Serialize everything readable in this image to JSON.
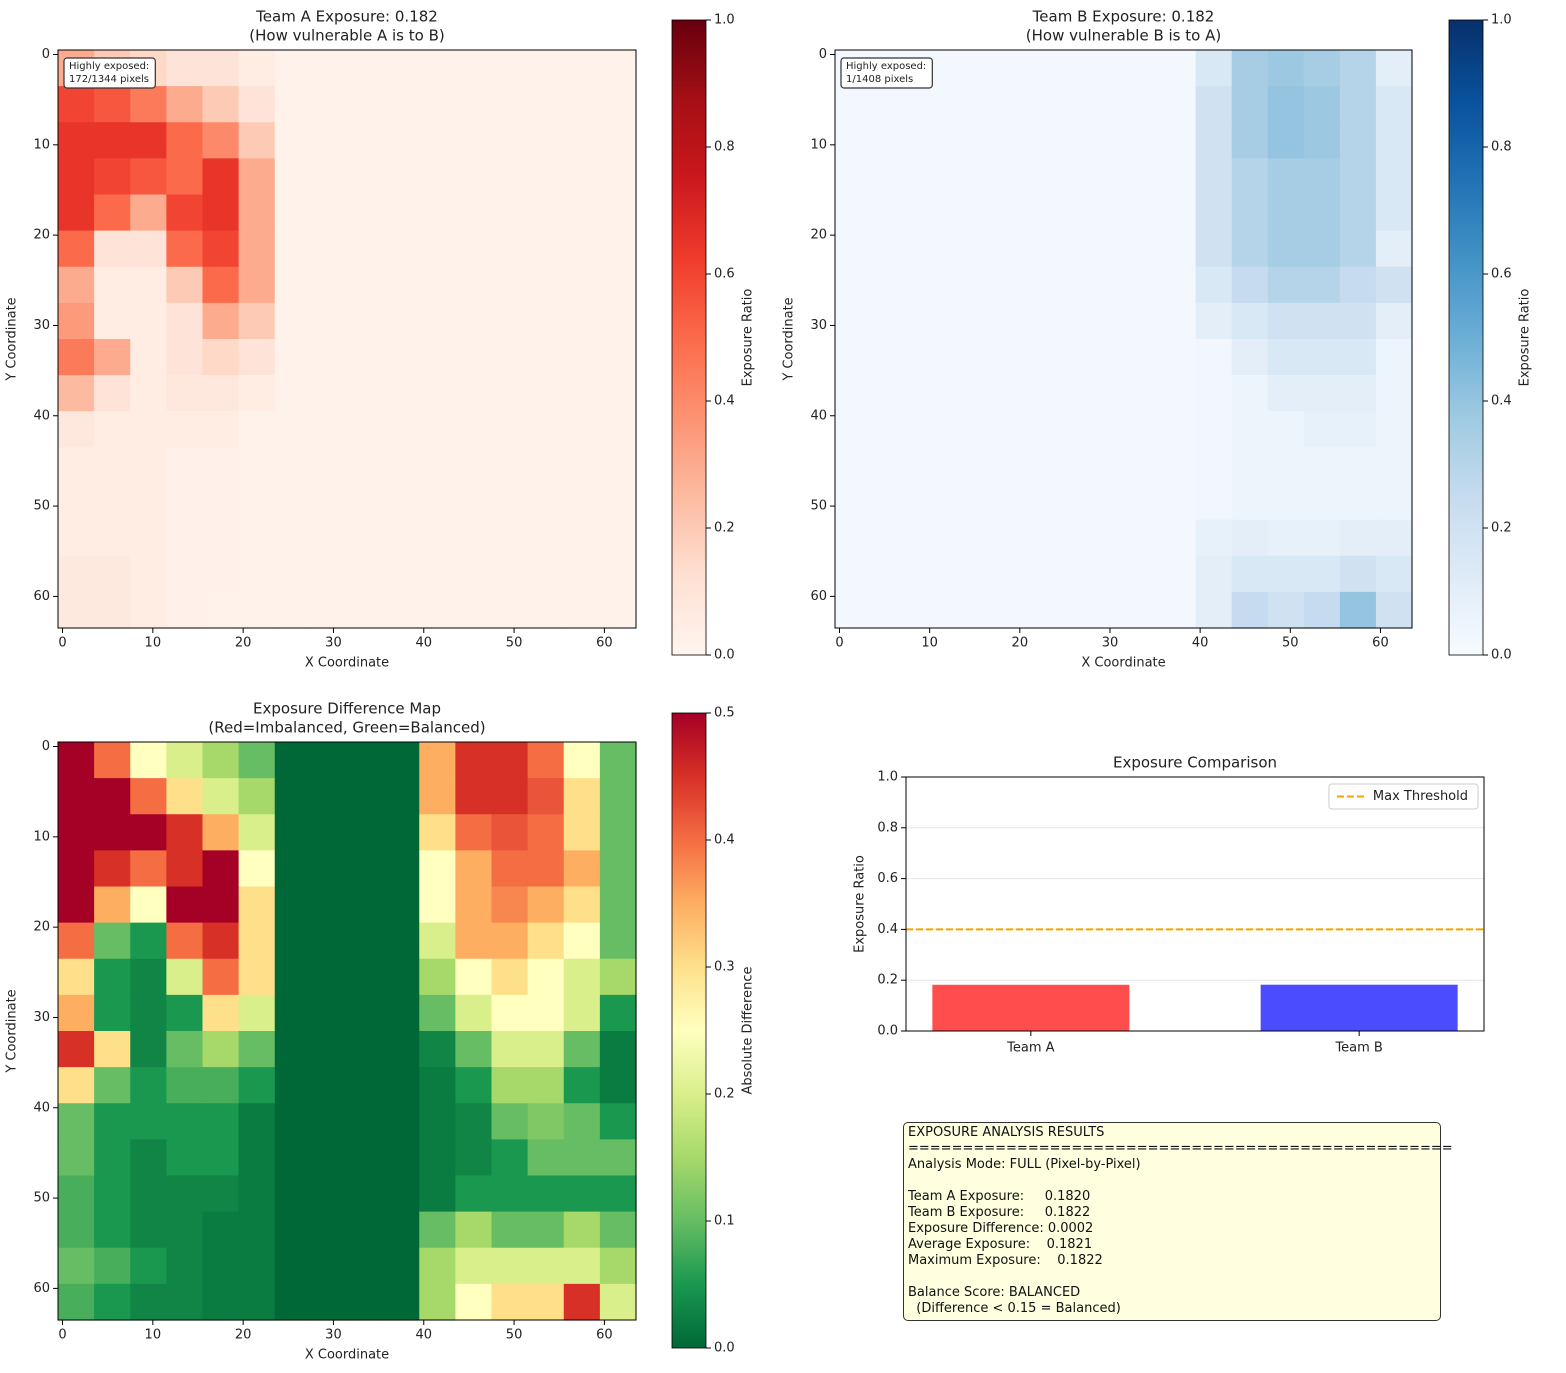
{
  "chart_data": [
    {
      "type": "heatmap",
      "title": "Team A Exposure: 0.182",
      "subtitle": "(How vulnerable A is to B)",
      "xlabel": "X Coordinate",
      "ylabel": "Y Coordinate",
      "xlim": [
        -0.5,
        63.5
      ],
      "ylim": [
        63.5,
        -0.5
      ],
      "xticks": [
        0,
        10,
        20,
        30,
        40,
        50,
        60
      ],
      "yticks": [
        0,
        10,
        20,
        30,
        40,
        50,
        60
      ],
      "annotation": [
        "Highly exposed:",
        "172/1344 pixels"
      ],
      "colormap": [
        "#fff5f0",
        "#fee0d2",
        "#fcbba1",
        "#fc9272",
        "#fb6a4a",
        "#ef3b2c",
        "#cb181d",
        "#a50f15",
        "#67000d"
      ],
      "colorbar": {
        "label": "Exposure Ratio",
        "lim": [
          0,
          1
        ],
        "ticks": [
          {
            "value": 0,
            "label": "0.0"
          },
          {
            "value": 0.2,
            "label": "0.2"
          },
          {
            "value": 0.4,
            "label": "0.4"
          },
          {
            "value": 0.6,
            "label": "0.6"
          },
          {
            "value": 0.8,
            "label": "0.8"
          },
          {
            "value": 1,
            "label": "1.0"
          }
        ]
      },
      "values": [
        [
          0.3,
          0.2,
          0.15,
          0.1,
          0.1,
          0.05,
          0.02,
          0.02,
          0.02,
          0.02,
          0.02,
          0.02,
          0.02,
          0.02,
          0.02,
          0.02
        ],
        [
          0.6,
          0.55,
          0.45,
          0.3,
          0.2,
          0.1,
          0.02,
          0.02,
          0.02,
          0.02,
          0.02,
          0.02,
          0.02,
          0.02,
          0.02,
          0.02
        ],
        [
          0.65,
          0.65,
          0.65,
          0.5,
          0.4,
          0.2,
          0.02,
          0.02,
          0.02,
          0.02,
          0.02,
          0.02,
          0.02,
          0.02,
          0.02,
          0.02
        ],
        [
          0.65,
          0.6,
          0.55,
          0.5,
          0.65,
          0.3,
          0.02,
          0.02,
          0.02,
          0.02,
          0.02,
          0.02,
          0.02,
          0.02,
          0.02,
          0.02
        ],
        [
          0.65,
          0.5,
          0.3,
          0.6,
          0.65,
          0.3,
          0.02,
          0.02,
          0.02,
          0.02,
          0.02,
          0.02,
          0.02,
          0.02,
          0.02,
          0.02
        ],
        [
          0.5,
          0.1,
          0.1,
          0.5,
          0.6,
          0.3,
          0.02,
          0.02,
          0.02,
          0.02,
          0.02,
          0.02,
          0.02,
          0.02,
          0.02,
          0.02
        ],
        [
          0.3,
          0.05,
          0.05,
          0.2,
          0.5,
          0.3,
          0.02,
          0.02,
          0.02,
          0.02,
          0.02,
          0.02,
          0.02,
          0.02,
          0.02,
          0.02
        ],
        [
          0.35,
          0.05,
          0.05,
          0.1,
          0.3,
          0.2,
          0.02,
          0.02,
          0.02,
          0.02,
          0.02,
          0.02,
          0.02,
          0.02,
          0.02,
          0.02
        ],
        [
          0.45,
          0.3,
          0.05,
          0.1,
          0.15,
          0.1,
          0.02,
          0.02,
          0.02,
          0.02,
          0.02,
          0.02,
          0.02,
          0.02,
          0.02,
          0.02
        ],
        [
          0.25,
          0.1,
          0.05,
          0.08,
          0.08,
          0.05,
          0.02,
          0.02,
          0.02,
          0.02,
          0.02,
          0.02,
          0.02,
          0.02,
          0.02,
          0.02
        ],
        [
          0.08,
          0.05,
          0.05,
          0.05,
          0.05,
          0.02,
          0.02,
          0.02,
          0.02,
          0.02,
          0.02,
          0.02,
          0.02,
          0.02,
          0.02,
          0.02
        ],
        [
          0.05,
          0.05,
          0.05,
          0.03,
          0.03,
          0.02,
          0.02,
          0.02,
          0.02,
          0.02,
          0.02,
          0.02,
          0.02,
          0.02,
          0.02,
          0.02
        ],
        [
          0.05,
          0.05,
          0.05,
          0.03,
          0.03,
          0.02,
          0.02,
          0.02,
          0.02,
          0.02,
          0.02,
          0.02,
          0.02,
          0.02,
          0.02,
          0.02
        ],
        [
          0.05,
          0.05,
          0.05,
          0.03,
          0.03,
          0.02,
          0.02,
          0.02,
          0.02,
          0.02,
          0.02,
          0.02,
          0.02,
          0.02,
          0.02,
          0.02
        ],
        [
          0.07,
          0.07,
          0.05,
          0.03,
          0.03,
          0.02,
          0.02,
          0.02,
          0.02,
          0.02,
          0.02,
          0.02,
          0.02,
          0.02,
          0.02,
          0.02
        ],
        [
          0.07,
          0.07,
          0.05,
          0.03,
          0.02,
          0.02,
          0.02,
          0.02,
          0.02,
          0.02,
          0.02,
          0.02,
          0.02,
          0.02,
          0.02,
          0.02
        ]
      ]
    },
    {
      "type": "heatmap",
      "title": "Team B Exposure: 0.182",
      "subtitle": "(How vulnerable B is to A)",
      "xlabel": "X Coordinate",
      "ylabel": "Y Coordinate",
      "xlim": [
        -0.5,
        63.5
      ],
      "ylim": [
        63.5,
        -0.5
      ],
      "xticks": [
        0,
        10,
        20,
        30,
        40,
        50,
        60
      ],
      "yticks": [
        0,
        10,
        20,
        30,
        40,
        50,
        60
      ],
      "annotation": [
        "Highly exposed:",
        "1/1408 pixels"
      ],
      "colormap": [
        "#f7fbff",
        "#deebf7",
        "#c6dbef",
        "#9ecae1",
        "#6baed6",
        "#4292c6",
        "#2171b5",
        "#08519c",
        "#08306b"
      ],
      "colorbar": {
        "label": "Exposure Ratio",
        "lim": [
          0,
          1
        ],
        "ticks": [
          {
            "value": 0,
            "label": "0.0"
          },
          {
            "value": 0.2,
            "label": "0.2"
          },
          {
            "value": 0.4,
            "label": "0.4"
          },
          {
            "value": 0.6,
            "label": "0.6"
          },
          {
            "value": 0.8,
            "label": "0.8"
          },
          {
            "value": 1,
            "label": "1.0"
          }
        ]
      },
      "values": [
        [
          0.02,
          0.02,
          0.02,
          0.02,
          0.02,
          0.02,
          0.02,
          0.02,
          0.02,
          0.02,
          0.15,
          0.35,
          0.38,
          0.35,
          0.3,
          0.1
        ],
        [
          0.02,
          0.02,
          0.02,
          0.02,
          0.02,
          0.02,
          0.02,
          0.02,
          0.02,
          0.02,
          0.2,
          0.35,
          0.4,
          0.38,
          0.3,
          0.15
        ],
        [
          0.02,
          0.02,
          0.02,
          0.02,
          0.02,
          0.02,
          0.02,
          0.02,
          0.02,
          0.02,
          0.2,
          0.35,
          0.4,
          0.38,
          0.3,
          0.15
        ],
        [
          0.02,
          0.02,
          0.02,
          0.02,
          0.02,
          0.02,
          0.02,
          0.02,
          0.02,
          0.02,
          0.2,
          0.3,
          0.35,
          0.35,
          0.3,
          0.15
        ],
        [
          0.02,
          0.02,
          0.02,
          0.02,
          0.02,
          0.02,
          0.02,
          0.02,
          0.02,
          0.02,
          0.2,
          0.3,
          0.35,
          0.35,
          0.3,
          0.15
        ],
        [
          0.02,
          0.02,
          0.02,
          0.02,
          0.02,
          0.02,
          0.02,
          0.02,
          0.02,
          0.02,
          0.2,
          0.3,
          0.35,
          0.35,
          0.3,
          0.1
        ],
        [
          0.02,
          0.02,
          0.02,
          0.02,
          0.02,
          0.02,
          0.02,
          0.02,
          0.02,
          0.02,
          0.15,
          0.25,
          0.3,
          0.3,
          0.25,
          0.2
        ],
        [
          0.02,
          0.02,
          0.02,
          0.02,
          0.02,
          0.02,
          0.02,
          0.02,
          0.02,
          0.02,
          0.1,
          0.15,
          0.2,
          0.2,
          0.2,
          0.1
        ],
        [
          0.02,
          0.02,
          0.02,
          0.02,
          0.02,
          0.02,
          0.02,
          0.02,
          0.02,
          0.02,
          0.03,
          0.1,
          0.15,
          0.15,
          0.15,
          0.05
        ],
        [
          0.02,
          0.02,
          0.02,
          0.02,
          0.02,
          0.02,
          0.02,
          0.02,
          0.02,
          0.02,
          0.03,
          0.05,
          0.1,
          0.1,
          0.1,
          0.05
        ],
        [
          0.02,
          0.02,
          0.02,
          0.02,
          0.02,
          0.02,
          0.02,
          0.02,
          0.02,
          0.02,
          0.03,
          0.05,
          0.05,
          0.08,
          0.08,
          0.05
        ],
        [
          0.02,
          0.02,
          0.02,
          0.02,
          0.02,
          0.02,
          0.02,
          0.02,
          0.02,
          0.02,
          0.03,
          0.05,
          0.05,
          0.05,
          0.05,
          0.05
        ],
        [
          0.02,
          0.02,
          0.02,
          0.02,
          0.02,
          0.02,
          0.02,
          0.02,
          0.02,
          0.02,
          0.03,
          0.05,
          0.05,
          0.05,
          0.05,
          0.05
        ],
        [
          0.02,
          0.02,
          0.02,
          0.02,
          0.02,
          0.02,
          0.02,
          0.02,
          0.02,
          0.02,
          0.08,
          0.1,
          0.08,
          0.08,
          0.1,
          0.1
        ],
        [
          0.02,
          0.02,
          0.02,
          0.02,
          0.02,
          0.02,
          0.02,
          0.02,
          0.02,
          0.02,
          0.1,
          0.15,
          0.15,
          0.15,
          0.2,
          0.15
        ],
        [
          0.02,
          0.02,
          0.02,
          0.02,
          0.02,
          0.02,
          0.02,
          0.02,
          0.02,
          0.02,
          0.1,
          0.25,
          0.2,
          0.25,
          0.4,
          0.2
        ]
      ]
    },
    {
      "type": "heatmap",
      "title": "Exposure Difference Map",
      "subtitle": "(Red=Imbalanced, Green=Balanced)",
      "xlabel": "X Coordinate",
      "ylabel": "Y Coordinate",
      "xlim": [
        -0.5,
        63.5
      ],
      "ylim": [
        63.5,
        -0.5
      ],
      "xticks": [
        0,
        10,
        20,
        30,
        40,
        50,
        60
      ],
      "yticks": [
        0,
        10,
        20,
        30,
        40,
        50,
        60
      ],
      "colormap": [
        "#006837",
        "#1a9850",
        "#66bd63",
        "#a6d96a",
        "#d9ef8b",
        "#ffffbf",
        "#fee08b",
        "#fdae61",
        "#f46d43",
        "#d73027",
        "#a50026"
      ],
      "colorbar": {
        "label": "Absolute Difference",
        "lim": [
          0,
          0.5
        ],
        "ticks": [
          {
            "value": 0,
            "label": "0.0"
          },
          {
            "value": 0.1,
            "label": "0.1"
          },
          {
            "value": 0.2,
            "label": "0.2"
          },
          {
            "value": 0.3,
            "label": "0.3"
          },
          {
            "value": 0.4,
            "label": "0.4"
          },
          {
            "value": 0.5,
            "label": "0.5"
          }
        ]
      },
      "values": [
        [
          0.5,
          0.4,
          0.25,
          0.2,
          0.15,
          0.1,
          0,
          0,
          0,
          0,
          0.35,
          0.45,
          0.45,
          0.4,
          0.25,
          0.1
        ],
        [
          0.5,
          0.5,
          0.4,
          0.3,
          0.2,
          0.15,
          0,
          0,
          0,
          0,
          0.35,
          0.45,
          0.45,
          0.42,
          0.3,
          0.1
        ],
        [
          0.5,
          0.5,
          0.5,
          0.45,
          0.35,
          0.2,
          0,
          0,
          0,
          0,
          0.3,
          0.4,
          0.42,
          0.4,
          0.3,
          0.1
        ],
        [
          0.5,
          0.45,
          0.4,
          0.45,
          0.5,
          0.25,
          0,
          0,
          0,
          0,
          0.25,
          0.35,
          0.4,
          0.4,
          0.35,
          0.1
        ],
        [
          0.5,
          0.35,
          0.25,
          0.5,
          0.5,
          0.3,
          0,
          0,
          0,
          0,
          0.25,
          0.35,
          0.38,
          0.35,
          0.3,
          0.1
        ],
        [
          0.4,
          0.1,
          0.05,
          0.4,
          0.45,
          0.3,
          0,
          0,
          0,
          0,
          0.2,
          0.35,
          0.35,
          0.3,
          0.25,
          0.1
        ],
        [
          0.3,
          0.05,
          0.03,
          0.2,
          0.4,
          0.3,
          0,
          0,
          0,
          0,
          0.15,
          0.25,
          0.3,
          0.25,
          0.2,
          0.15
        ],
        [
          0.35,
          0.05,
          0.03,
          0.05,
          0.3,
          0.2,
          0,
          0,
          0,
          0,
          0.1,
          0.2,
          0.25,
          0.25,
          0.2,
          0.05
        ],
        [
          0.45,
          0.3,
          0.03,
          0.1,
          0.15,
          0.1,
          0,
          0,
          0,
          0,
          0.03,
          0.1,
          0.2,
          0.2,
          0.1,
          0.02
        ],
        [
          0.3,
          0.1,
          0.05,
          0.08,
          0.08,
          0.05,
          0,
          0,
          0,
          0,
          0.02,
          0.05,
          0.15,
          0.15,
          0.05,
          0.02
        ],
        [
          0.1,
          0.05,
          0.05,
          0.05,
          0.05,
          0.02,
          0,
          0,
          0,
          0,
          0.02,
          0.03,
          0.1,
          0.12,
          0.1,
          0.05
        ],
        [
          0.1,
          0.05,
          0.03,
          0.05,
          0.05,
          0.02,
          0,
          0,
          0,
          0,
          0.02,
          0.03,
          0.05,
          0.1,
          0.1,
          0.1
        ],
        [
          0.08,
          0.05,
          0.03,
          0.03,
          0.03,
          0.02,
          0,
          0,
          0,
          0,
          0.02,
          0.05,
          0.05,
          0.05,
          0.05,
          0.05
        ],
        [
          0.08,
          0.05,
          0.03,
          0.03,
          0.02,
          0.02,
          0,
          0,
          0,
          0,
          0.1,
          0.15,
          0.1,
          0.1,
          0.15,
          0.1
        ],
        [
          0.1,
          0.08,
          0.05,
          0.03,
          0.02,
          0.02,
          0,
          0,
          0,
          0,
          0.15,
          0.2,
          0.2,
          0.2,
          0.2,
          0.15
        ],
        [
          0.08,
          0.05,
          0.03,
          0.03,
          0.02,
          0.02,
          0,
          0,
          0,
          0,
          0.15,
          0.25,
          0.3,
          0.3,
          0.45,
          0.2
        ]
      ]
    },
    {
      "type": "bar",
      "title": "Exposure Comparison",
      "ylabel": "Exposure Ratio",
      "categories": [
        "Team A",
        "Team B"
      ],
      "values": [
        0.182,
        0.1822
      ],
      "colors": [
        "#ff4c4c",
        "#4c4cff"
      ],
      "ylim": [
        0,
        1
      ],
      "yticks": [
        {
          "value": 0,
          "label": "0.0"
        },
        {
          "value": 0.2,
          "label": "0.2"
        },
        {
          "value": 0.4,
          "label": "0.4"
        },
        {
          "value": 0.6,
          "label": "0.6"
        },
        {
          "value": 0.8,
          "label": "0.8"
        },
        {
          "value": 1,
          "label": "1.0"
        }
      ],
      "grid": true,
      "legend": "upper right",
      "threshold": {
        "name": "Max Threshold",
        "value": 0.4,
        "color": "#f5a300"
      }
    }
  ],
  "results_box": {
    "sections": [
      [
        "EXPOSURE ANALYSIS RESULTS",
        "==================================================",
        "Analysis Mode: FULL (Pixel-by-Pixel)"
      ],
      [
        "Team A Exposure:     0.1820",
        "Team B Exposure:     0.1822",
        "Exposure Difference: 0.0002",
        "Average Exposure:    0.1821",
        "Maximum Exposure:    0.1822"
      ],
      [
        "Balance Score: BALANCED",
        "  (Difference < 0.15 = Balanced)"
      ]
    ]
  }
}
